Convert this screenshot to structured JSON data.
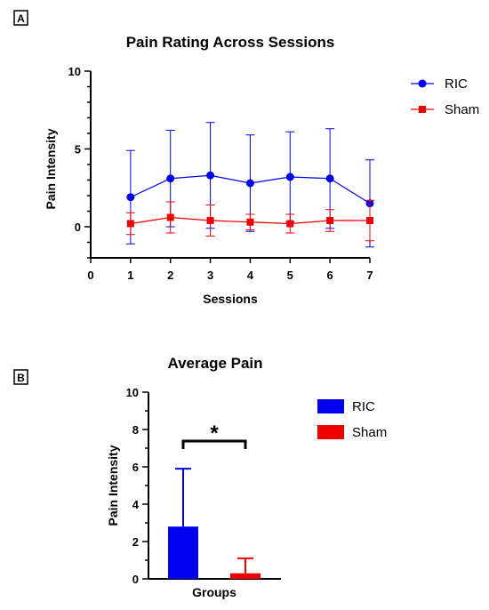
{
  "panels": {
    "a": {
      "label": "A"
    },
    "b": {
      "label": "B"
    }
  },
  "colors": {
    "ric": "#0000ee",
    "sham": "#ee0000",
    "axis": "#000000"
  },
  "chart_data": [
    {
      "type": "line",
      "title": "Pain Rating Across Sessions",
      "xlabel": "Sessions",
      "ylabel": "Pain Intensity",
      "xlim": [
        0,
        7
      ],
      "ylim": [
        -2,
        10
      ],
      "xticks": [
        0,
        1,
        2,
        3,
        4,
        5,
        6,
        7
      ],
      "yticks": [
        0,
        5,
        10
      ],
      "x": [
        1,
        2,
        3,
        4,
        5,
        6,
        7
      ],
      "grid": false,
      "legend": "right",
      "series": [
        {
          "name": "RIC",
          "marker": "circle",
          "values": [
            1.9,
            3.1,
            3.3,
            2.8,
            3.2,
            3.1,
            1.5
          ],
          "errors": [
            3.0,
            3.1,
            3.4,
            3.1,
            2.9,
            3.2,
            2.8
          ]
        },
        {
          "name": "Sham",
          "marker": "square",
          "values": [
            0.2,
            0.6,
            0.4,
            0.3,
            0.2,
            0.4,
            0.4
          ],
          "errors": [
            0.7,
            1.0,
            1.0,
            0.5,
            0.6,
            0.7,
            1.3
          ]
        }
      ]
    },
    {
      "type": "bar",
      "title": "Average Pain",
      "xlabel": "Groups",
      "ylabel": "Pain Intensity",
      "ylim": [
        0,
        10
      ],
      "yticks": [
        0,
        2,
        4,
        6,
        8,
        10
      ],
      "grid": false,
      "legend": "right",
      "series": [
        {
          "name": "RIC",
          "value": 2.8,
          "error": 3.1
        },
        {
          "name": "Sham",
          "value": 0.3,
          "error": 0.8
        }
      ],
      "significance": "*"
    }
  ]
}
